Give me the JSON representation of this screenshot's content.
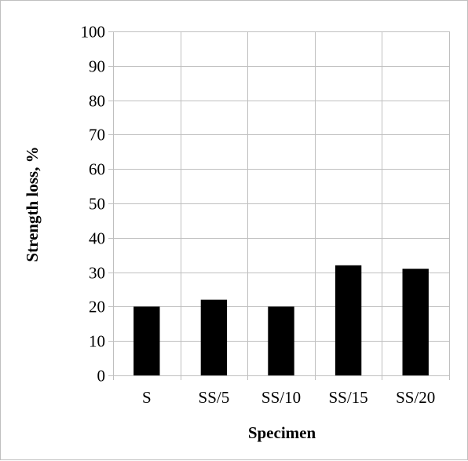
{
  "chart_data": {
    "type": "bar",
    "categories": [
      "S",
      "SS/5",
      "SS/10",
      "SS/15",
      "SS/20"
    ],
    "values": [
      20,
      22,
      20,
      32,
      31
    ],
    "title": "",
    "xlabel": "Specimen",
    "ylabel": "Strength loss, %",
    "ylim": [
      0,
      100
    ],
    "yticks": [
      0,
      10,
      20,
      30,
      40,
      50,
      60,
      70,
      80,
      90,
      100
    ],
    "grid": true,
    "legend": "none",
    "bar_color": "#000000",
    "grid_color": "#bfbfbf"
  }
}
